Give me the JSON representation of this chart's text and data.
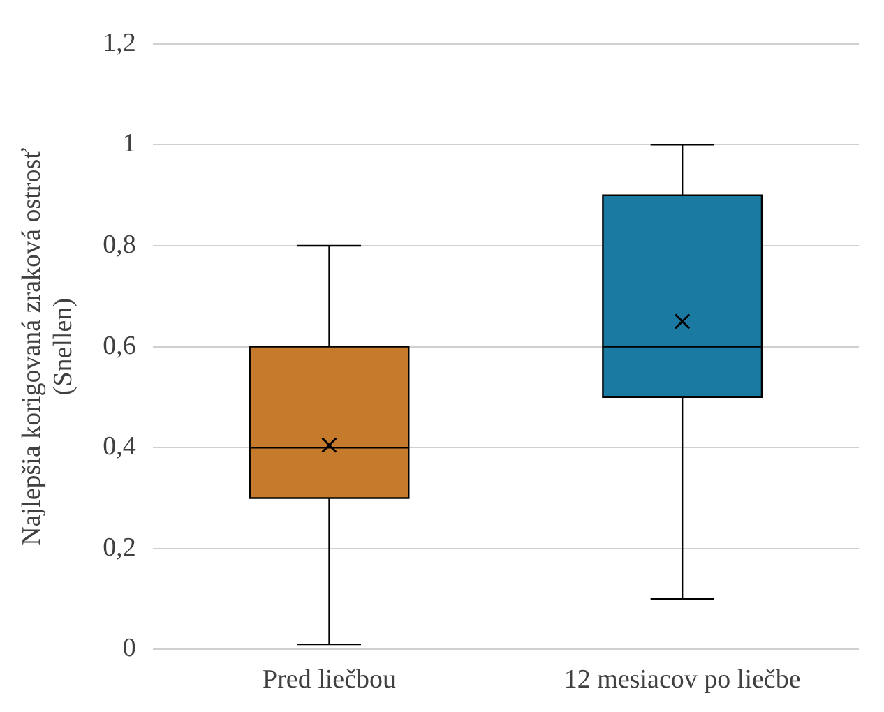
{
  "chart_data": {
    "type": "box",
    "ylabel": "Najlepšia korigovaná zraková ostrosť (Snellen)",
    "categories": [
      "Pred liečbou",
      "12 mesiacov po liečbe"
    ],
    "colors": [
      "#c67a2c",
      "#1b7aa2"
    ],
    "boxes": [
      {
        "low": 0.01,
        "q1": 0.3,
        "median": 0.4,
        "q3": 0.6,
        "high": 0.8,
        "mean": 0.405
      },
      {
        "low": 0.1,
        "q1": 0.5,
        "median": 0.6,
        "q3": 0.9,
        "high": 1.0,
        "mean": 0.65
      }
    ],
    "ylim": [
      0,
      1.2
    ],
    "yticks": [
      0,
      {
        "value": 0.2,
        "label": "0,2"
      },
      {
        "value": 0.4,
        "label": "0,4"
      },
      {
        "value": 0.6,
        "label": "0,6"
      },
      {
        "value": 0.8,
        "label": "0,8"
      },
      1,
      {
        "value": 1.2,
        "label": "1,2"
      }
    ],
    "grid": "y"
  }
}
